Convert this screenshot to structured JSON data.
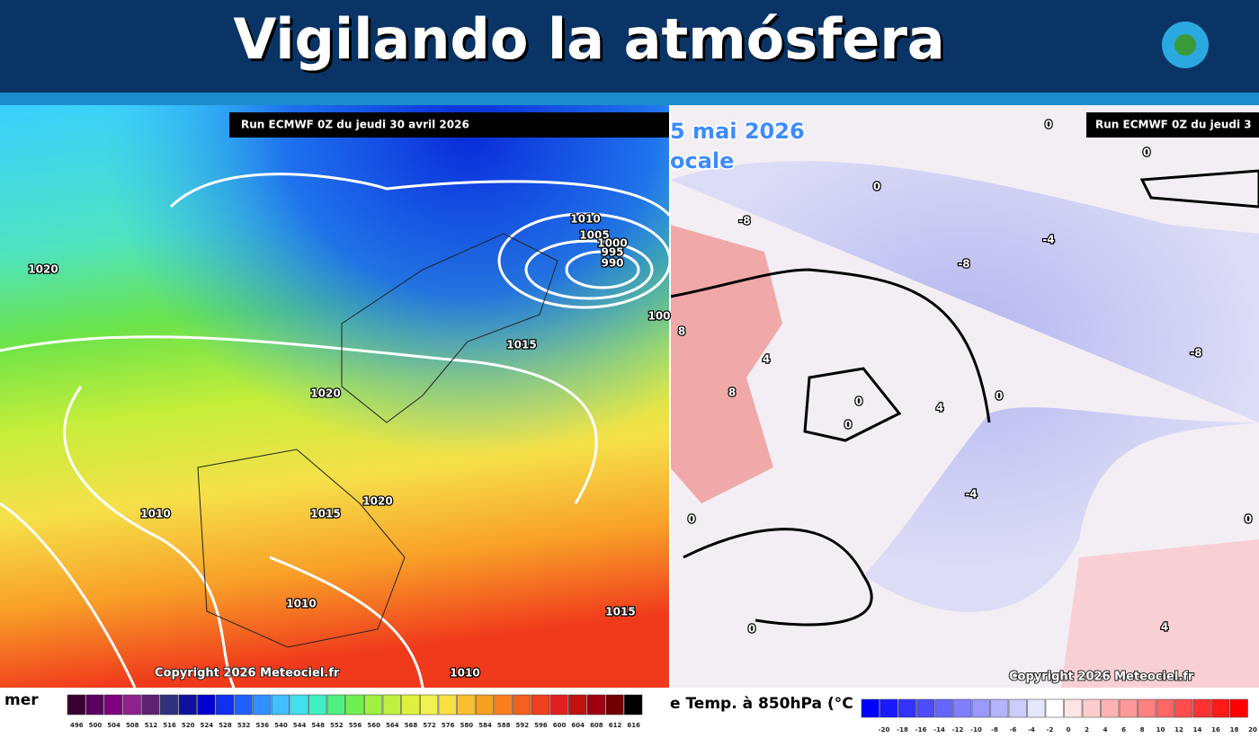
{
  "header": {
    "title": "Vigilando la atmósfera"
  },
  "left_map": {
    "run_label": "Run ECMWF 0Z du jeudi 30 avril 2026",
    "copyright": "Copyright 2026 Meteociel.fr",
    "legend_label": "mer",
    "scale_labels": [
      496,
      500,
      504,
      508,
      512,
      516,
      520,
      524,
      528,
      532,
      536,
      540,
      544,
      548,
      552,
      556,
      560,
      564,
      568,
      572,
      576,
      580,
      584,
      588,
      592,
      596,
      600,
      604,
      608,
      612,
      616
    ],
    "contour_labels": [
      "1020",
      "1010",
      "1005",
      "1000",
      "995",
      "990",
      "1015",
      "1020",
      "1010",
      "1015",
      "1020",
      "1010",
      "1015",
      "1010",
      "100"
    ]
  },
  "right_map": {
    "date_fragment": "5 mai 2026",
    "subtitle_fragment": "ocale",
    "run_label": "Run ECMWF 0Z du jeudi 3",
    "copyright": "Copyright 2026 Meteociel.fr",
    "legend_label": "e Temp. à 850hPa (°C",
    "scale_labels": [
      -20,
      -18,
      -16,
      -14,
      -12,
      -10,
      -8,
      -6,
      -4,
      -2,
      0,
      2,
      4,
      6,
      8,
      10,
      12,
      14,
      16,
      18,
      20
    ],
    "contour_labels": [
      "0",
      "0",
      "0",
      "-8",
      "-4",
      "-8",
      "8",
      "4",
      "8",
      "0",
      "0",
      "4",
      "0",
      "-4",
      "0",
      "0",
      "4",
      "-8",
      "0"
    ]
  }
}
